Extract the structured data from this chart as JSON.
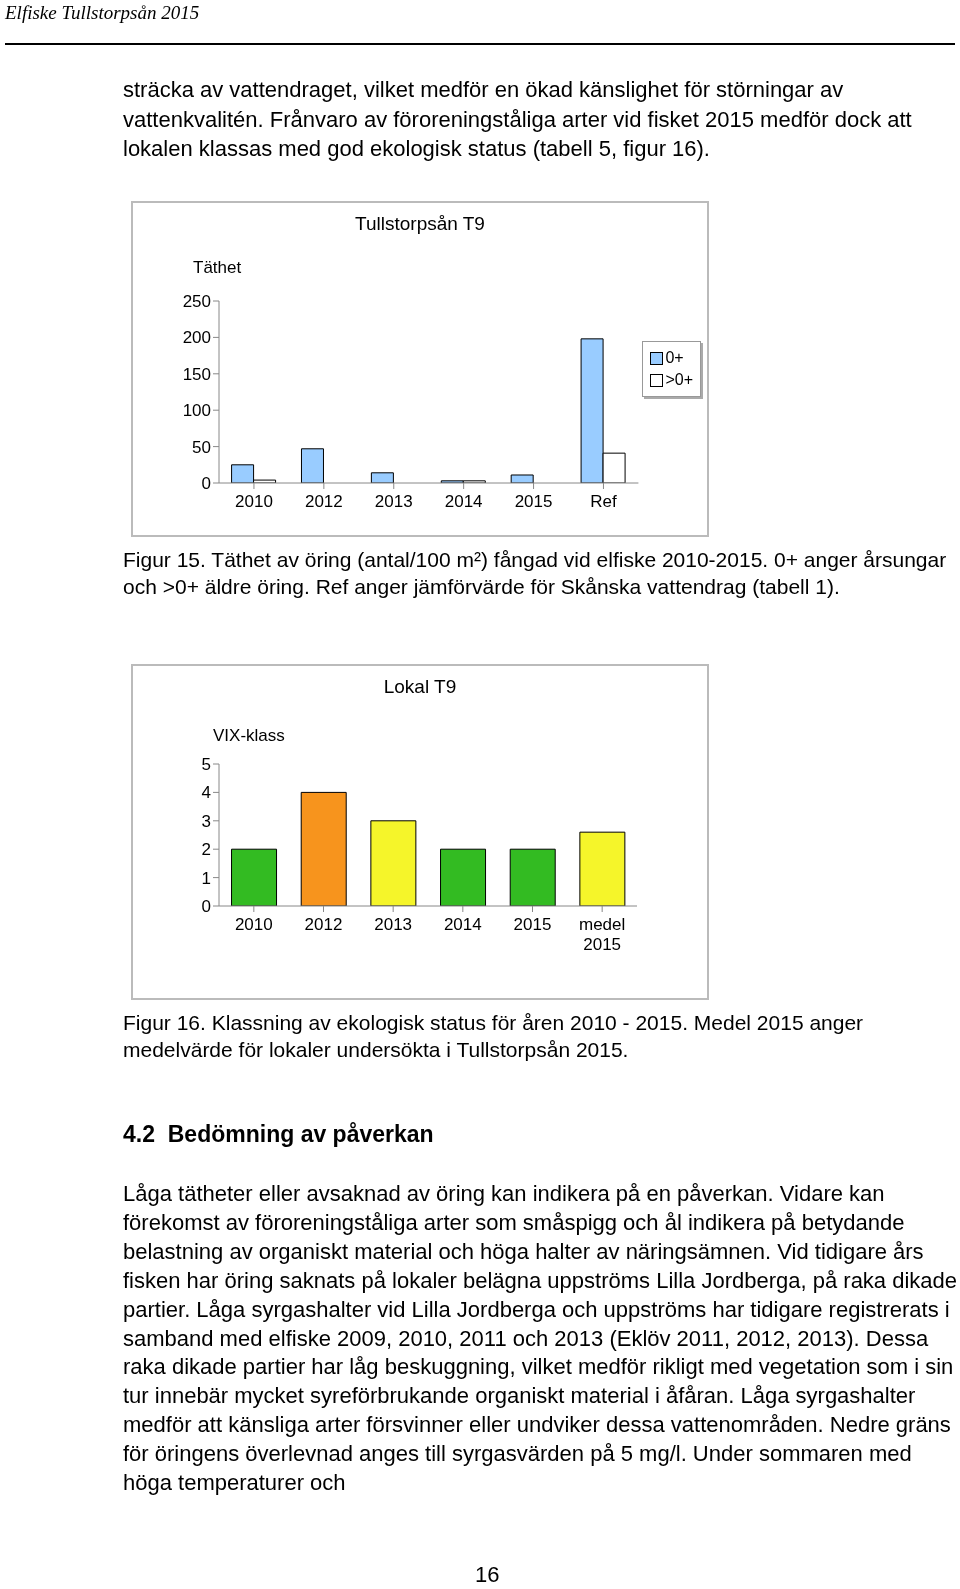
{
  "chart_data": [
    {
      "type": "bar",
      "title": "Tullstorpsån T9",
      "ylabel": "Täthet",
      "categories": [
        "2010",
        "2012",
        "2013",
        "2014",
        "2015",
        "Ref"
      ],
      "series": [
        {
          "name": "0+",
          "color": "#99ccff",
          "values": [
            25,
            47,
            14,
            3,
            11,
            198
          ]
        },
        {
          "name": ">0+",
          "color": "#ffffff",
          "values": [
            4,
            0,
            0,
            3,
            0,
            41
          ]
        }
      ],
      "ylim": [
        0,
        250
      ],
      "yticks": [
        0,
        50,
        100,
        150,
        200,
        250
      ],
      "legend": "right",
      "annotations": [
        "Elfiske Tullstorpsån 2015",
        "sträcka av vattendraget, vilket medför en ökad känslighet för störningar av vattenkvalitén. Frånvaro av föroreningståliga arter vid fisket 2015 medför dock att lokalen klassas med god ekologisk status (tabell 5, figur 16).",
        "Figur 15. Täthet av öring (antal/100 m²) fångad vid elfiske 2010-2015. 0+ anger årsungar och >0+ äldre öring. Ref anger jämförvärde för Skånska vattendrag (tabell 1)."
      ]
    },
    {
      "type": "bar",
      "title": "Lokal T9",
      "ylabel": "VIX-klass",
      "categories": [
        "2010",
        "2012",
        "2013",
        "2014",
        "2015",
        "medel 2015"
      ],
      "values": [
        2,
        4,
        3,
        2,
        2,
        2.6
      ],
      "colors": [
        "#33bb22",
        "#f7941d",
        "#f5f52a",
        "#33bb22",
        "#33bb22",
        "#f5f52a"
      ],
      "ylim": [
        0,
        5
      ],
      "yticks": [
        0,
        1,
        2,
        3,
        4,
        5
      ],
      "annotations": [
        "Figur 16. Klassning av ekologisk status för åren 2010 - 2015. Medel 2015 anger medelvärde för lokaler undersökta i Tullstorpsån 2015.",
        "4.2  Bedömning av påverkan",
        "Låga tätheter eller avsaknad av öring kan indikera på en påverkan. Vidare kan förekomst av föroreningståliga arter som småspigg och ål indikera på betydande belastning av organiskt material och höga halter av näringsämnen. Vid tidigare års fisken har öring saknats på lokaler belägna uppströms Lilla Jordberga, på raka dikade partier. Låga syrgashalter vid Lilla Jordberga och uppströms har tidigare registrerats i samband med elfiske 2009, 2010, 2011 och 2013 (Eklöv 2011, 2012, 2013). Dessa raka dikade partier har låg beskuggning, vilket medför rikligt med vegetation som i sin tur innebär mycket syreförbrukande organiskt material i åfåran. Låga syrgashalter medför att känsliga arter försvinner eller undviker dessa vattenområden. Nedre gräns för öringens överlevnad anges till syrgasvärden på 5 mg/l. Under sommaren med höga temperaturer och",
        "16"
      ]
    }
  ]
}
